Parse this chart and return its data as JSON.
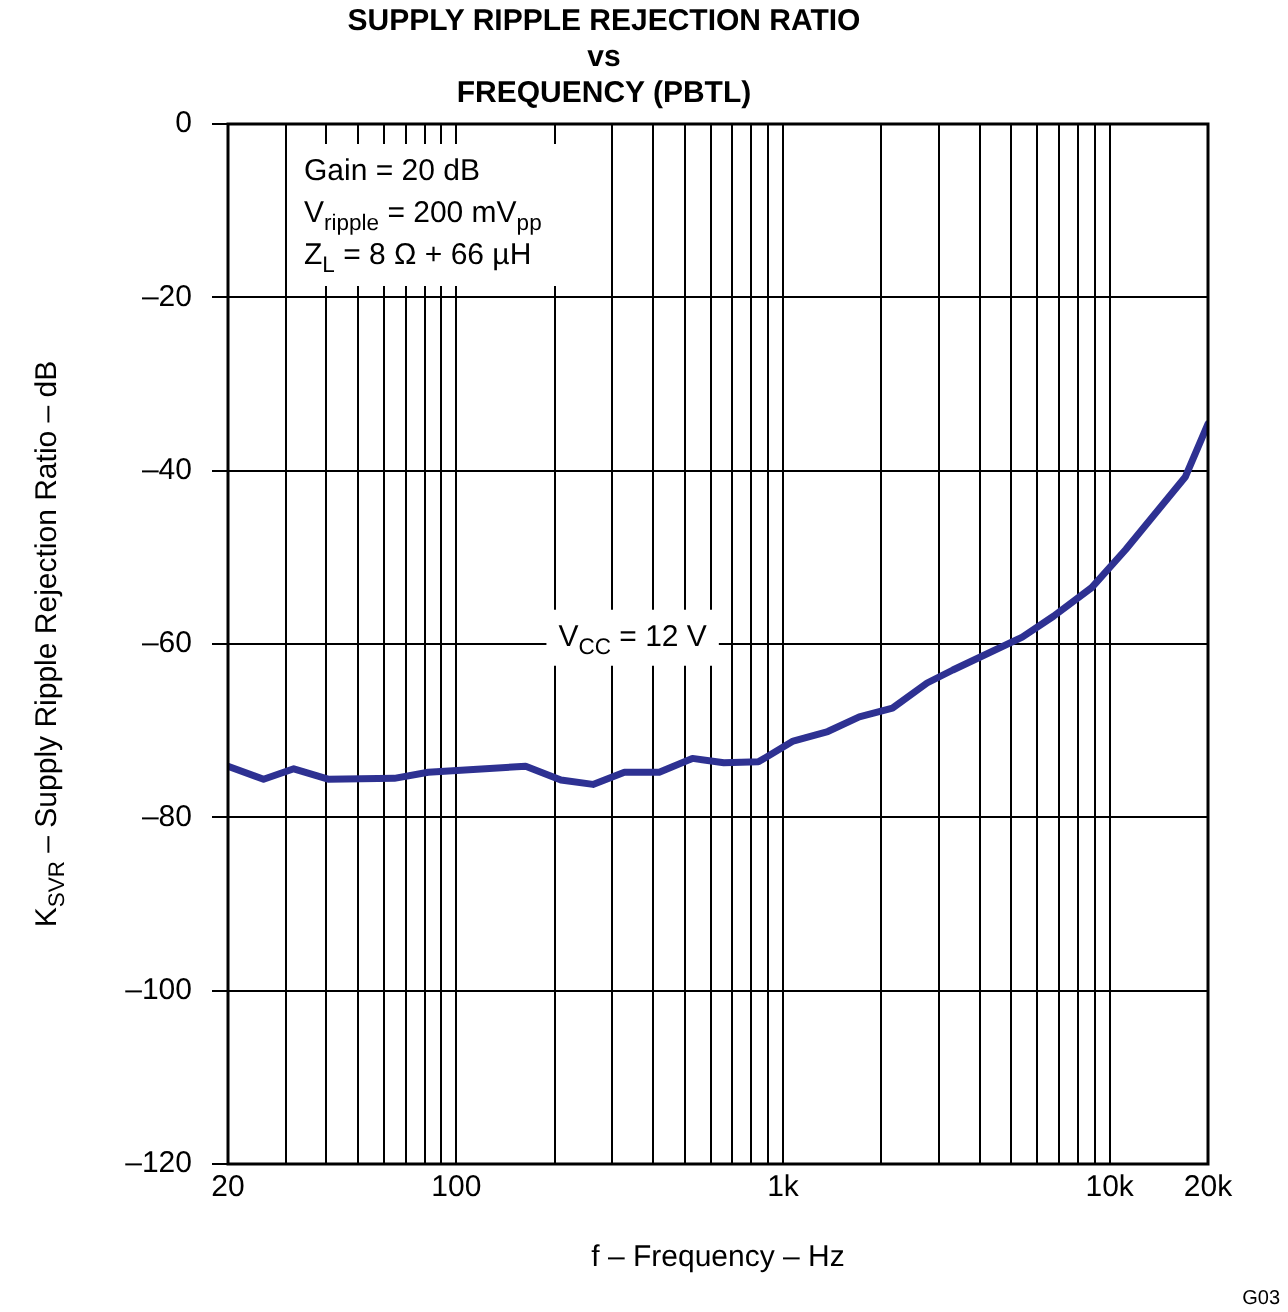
{
  "chart_data": {
    "type": "line",
    "title": [
      "SUPPLY RIPPLE REJECTION RATIO",
      "vs",
      "FREQUENCY (PBTL)"
    ],
    "xlabel": "f – Frequency – Hz",
    "ylabel": "K$_{SVR}$ – Supply Ripple Rejection Ratio – dB",
    "annotations": [
      "Gain = 20 dB",
      "V$_{ripple}$ = 200 mV$_{pp}$",
      "Z$_{L}$ = 8 Ω + 66 µH",
      "G03"
    ],
    "log": "x",
    "grid": true,
    "legend": false,
    "marker": "none",
    "line_style": "solid",
    "xlim": [
      20,
      20000
    ],
    "xticks": [
      20,
      {
        "value": 30,
        "label": null
      },
      {
        "value": 40,
        "label": null
      },
      {
        "value": 50,
        "label": null
      },
      {
        "value": 60,
        "label": null
      },
      {
        "value": 70,
        "label": null
      },
      {
        "value": 80,
        "label": null
      },
      {
        "value": 90,
        "label": null
      },
      100,
      {
        "value": 200,
        "label": null
      },
      {
        "value": 300,
        "label": null
      },
      {
        "value": 400,
        "label": null
      },
      {
        "value": 500,
        "label": null
      },
      {
        "value": 600,
        "label": null
      },
      {
        "value": 700,
        "label": null
      },
      {
        "value": 800,
        "label": null
      },
      {
        "value": 900,
        "label": null
      },
      {
        "value": 1000,
        "label": "1k"
      },
      {
        "value": 2000,
        "label": null
      },
      {
        "value": 3000,
        "label": null
      },
      {
        "value": 4000,
        "label": null
      },
      {
        "value": 5000,
        "label": null
      },
      {
        "value": 6000,
        "label": null
      },
      {
        "value": 7000,
        "label": null
      },
      {
        "value": 8000,
        "label": null
      },
      {
        "value": 9000,
        "label": null
      },
      {
        "value": 10000,
        "label": "10k"
      },
      {
        "value": 20000,
        "label": "20k"
      }
    ],
    "ylim": [
      -120,
      0
    ],
    "yticks": [
      {
        "value": -120,
        "label": "–120"
      },
      {
        "value": -100,
        "label": "–100"
      },
      {
        "value": -80,
        "label": "–80"
      },
      {
        "value": -60,
        "label": "–60"
      },
      {
        "value": -40,
        "label": "–40"
      },
      {
        "value": -20,
        "label": "–20"
      },
      0
    ],
    "series": [
      {
        "name": "V$_{CC}$ = 12 V",
        "color": "#2e3192",
        "x": [
          20,
          25.7,
          31.8,
          40.5,
          64.6,
          82,
          163,
          209,
          262,
          327,
          418,
          528,
          659,
          841,
          1074,
          1371,
          1712,
          2163,
          2761,
          3311,
          5400,
          6730,
          8810,
          11200,
          17060,
          20000
        ],
        "values": [
          -74.1,
          -75.6,
          -74.4,
          -75.6,
          -75.5,
          -74.8,
          -74.1,
          -75.7,
          -76.2,
          -74.8,
          -74.8,
          -73.2,
          -73.7,
          -73.6,
          -71.2,
          -70.1,
          -68.4,
          -67.4,
          -64.5,
          -63,
          -59.2,
          -56.8,
          -53.5,
          -49.1,
          -40.7,
          -34.6
        ]
      }
    ]
  }
}
